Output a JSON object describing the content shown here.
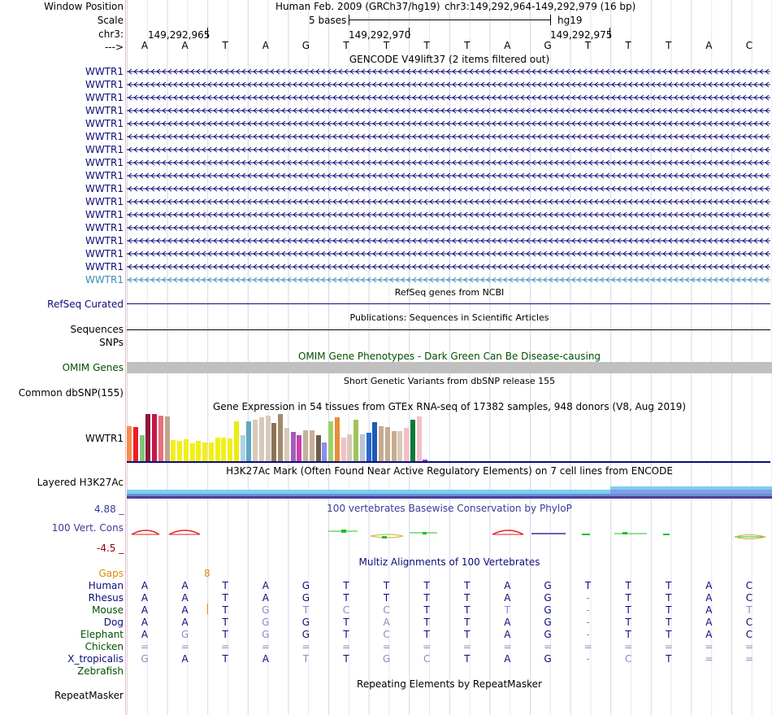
{
  "header": {
    "window_position_label": "Window Position",
    "assembly": "Human Feb. 2009 (GRCh37/hg19)",
    "position": "chr3:149,292,964-149,292,979 (16 bp)",
    "scale_label": "Scale",
    "scale_bar_text": "5 bases",
    "scale_genome": "hg19",
    "chrom_label": "chr3:",
    "ticks": [
      "149,292,965",
      "149,292,970",
      "149,292,975"
    ],
    "strand_label": "--->",
    "bases": [
      "A",
      "A",
      "T",
      "A",
      "G",
      "T",
      "T",
      "T",
      "T",
      "A",
      "G",
      "T",
      "T",
      "T",
      "A",
      "C"
    ]
  },
  "gencode": {
    "title": "GENCODE V49lift37 (2 items filtered out)",
    "rows": [
      "WWTR1",
      "WWTR1",
      "WWTR1",
      "WWTR1",
      "WWTR1",
      "WWTR1",
      "WWTR1",
      "WWTR1",
      "WWTR1",
      "WWTR1",
      "WWTR1",
      "WWTR1",
      "WWTR1",
      "WWTR1",
      "WWTR1",
      "WWTR1",
      "WWTR1"
    ],
    "row_color": "#0c0c78",
    "last_row_color": "#3a8fb5"
  },
  "refseq": {
    "title": "RefSeq genes from NCBI",
    "label": "RefSeq Curated",
    "color": "#0c0c78"
  },
  "pubs": {
    "title": "Publications: Sequences in Scientific Articles",
    "label": "Sequences"
  },
  "snps": {
    "label": "SNPs"
  },
  "omim": {
    "title": "OMIM Gene Phenotypes - Dark Green Can Be Disease-causing",
    "label": "OMIM Genes",
    "color": "#005000"
  },
  "dbsnp": {
    "title": "Short Genetic Variants from dbSNP release 155",
    "label": "Common dbSNP(155)"
  },
  "gtex": {
    "title": "Gene Expression in 54 tissues from GTEx RNA-seq of 17382 samples, 948 donors (V8, Aug 2019)",
    "label": "WWTR1",
    "values": [
      0.75,
      0.73,
      0.55,
      1.0,
      1.0,
      0.97,
      0.94,
      0.45,
      0.43,
      0.47,
      0.38,
      0.43,
      0.4,
      0.4,
      0.5,
      0.5,
      0.48,
      0.84,
      0.55,
      0.84,
      0.88,
      0.93,
      0.97,
      0.81,
      1.0,
      0.7,
      0.62,
      0.55,
      0.65,
      0.65,
      0.55,
      0.4,
      0.85,
      0.93,
      0.5,
      0.57,
      0.88,
      0.57,
      0.6,
      0.82,
      0.75,
      0.73,
      0.63,
      0.63,
      0.7,
      0.88,
      0.94,
      0.03
    ],
    "colors": [
      "#f58c4c",
      "#ee1c24",
      "#7fc779",
      "#8b1a3c",
      "#c5194a",
      "#e86f7a",
      "#c2a48d",
      "#f3ef1a",
      "#f3ef1a",
      "#f3ef1a",
      "#f3ef1a",
      "#f3ef1a",
      "#f3ef1a",
      "#f3ef1a",
      "#f3ef1a",
      "#f3ef1a",
      "#f3ef1a",
      "#ecea12",
      "#aad3e5",
      "#5ea7c4",
      "#d7c9bb",
      "#d7c9bb",
      "#d7c9bb",
      "#8a7256",
      "#a38b6a",
      "#d7c9bb",
      "#a25fb8",
      "#cc3fae",
      "#bfb49a",
      "#c8ae96",
      "#6d5d4b",
      "#8b8cf0",
      "#9ecf6b",
      "#e88d36",
      "#f4bfc8",
      "#d7c9bb",
      "#a1c45a",
      "#b7c7d4",
      "#2569cf",
      "#1c5bb4",
      "#c6ab8f",
      "#c6ab8f",
      "#c6ab8f",
      "#d7c9bb",
      "#f4bfc8",
      "#0a7a37",
      "#f4bfc8",
      "#9b3cc4"
    ]
  },
  "h3k27ac": {
    "title": "H3K27Ac Mark (Often Found Near Active Regulatory Elements) on 7 cell lines from ENCODE",
    "label": "Layered H3K27Ac"
  },
  "phylop": {
    "title": "100 vertebrates Basewise Conservation by PhyloP",
    "label": "100 Vert. Cons",
    "max": "4.88 _",
    "min": "-4.5 _"
  },
  "multiz": {
    "title": "Multiz Alignments of 100 Vertebrates",
    "gaps_label": "Gaps",
    "gaps_value": "8",
    "species": [
      {
        "name": "Human",
        "color": "#0c0c78",
        "seq": [
          "A",
          "A",
          "T",
          "A",
          "G",
          "T",
          "T",
          "T",
          "T",
          "A",
          "G",
          "T",
          "T",
          "T",
          "A",
          "C"
        ]
      },
      {
        "name": "Rhesus",
        "color": "#0c0c78",
        "seq": [
          "A",
          "A",
          "T",
          "A",
          "G",
          "T",
          "T",
          "T",
          "T",
          "A",
          "G",
          "-",
          "T",
          "T",
          "A",
          "C"
        ]
      },
      {
        "name": "Mouse",
        "color": "#005000",
        "seq": [
          "A",
          "A",
          "T",
          "G",
          "T",
          "C",
          "C",
          "T",
          "T",
          "T",
          "G",
          "-",
          "T",
          "T",
          "A",
          "T"
        ]
      },
      {
        "name": "Dog",
        "color": "#0c0c78",
        "seq": [
          "A",
          "A",
          "T",
          "G",
          "G",
          "T",
          "A",
          "T",
          "T",
          "A",
          "G",
          "-",
          "T",
          "T",
          "A",
          "C"
        ]
      },
      {
        "name": "Elephant",
        "color": "#005000",
        "seq": [
          "A",
          "G",
          "T",
          "G",
          "G",
          "T",
          "C",
          "T",
          "T",
          "A",
          "G",
          "-",
          "T",
          "T",
          "A",
          "C"
        ]
      },
      {
        "name": "Chicken",
        "color": "#005000",
        "seq": [
          "=",
          "=",
          "=",
          "=",
          "=",
          "=",
          "=",
          "=",
          "=",
          "=",
          "=",
          "=",
          "=",
          "=",
          "=",
          "="
        ]
      },
      {
        "name": "X_tropicalis",
        "color": "#0c0c78",
        "seq": [
          "G",
          "A",
          "T",
          "A",
          "T",
          "T",
          "G",
          "C",
          "T",
          "A",
          "G",
          "-",
          "C",
          "T",
          "=",
          "="
        ]
      },
      {
        "name": "Zebrafish",
        "color": "#005000",
        "seq": []
      }
    ]
  },
  "repeatmasker": {
    "title": "Repeating Elements by RepeatMasker",
    "label": "RepeatMasker"
  }
}
